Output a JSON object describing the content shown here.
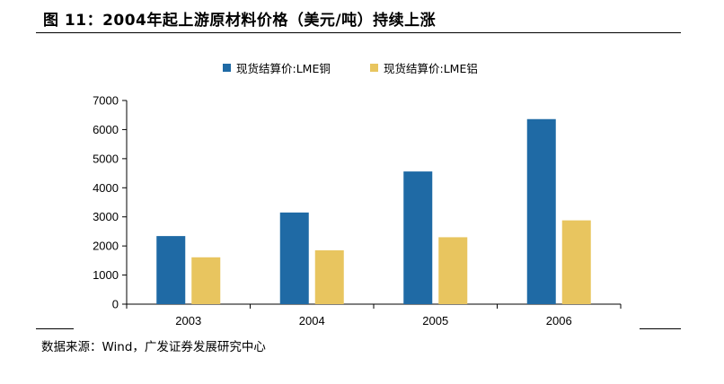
{
  "figure_title": "图 11：2004年起上游原材料价格（美元/吨）持续上涨",
  "source_note": "数据来源：Wind，广发证券发展研究中心",
  "chart_data": {
    "type": "bar",
    "title": "",
    "xlabel": "",
    "ylabel": "",
    "categories": [
      "2003",
      "2004",
      "2005",
      "2006"
    ],
    "series": [
      {
        "name": "现货结算价:LME铜",
        "color": "#1f6aa5",
        "values": [
          2340,
          3150,
          4560,
          6360
        ]
      },
      {
        "name": "现货结算价:LME铝",
        "color": "#e8c55f",
        "values": [
          1610,
          1850,
          2300,
          2880
        ]
      }
    ],
    "ylim": [
      0,
      7000
    ],
    "yticks": [
      "0",
      "1000",
      "2000",
      "3000",
      "4000",
      "5000",
      "6000",
      "7000"
    ],
    "grid": false,
    "legend_position": "top-center"
  }
}
